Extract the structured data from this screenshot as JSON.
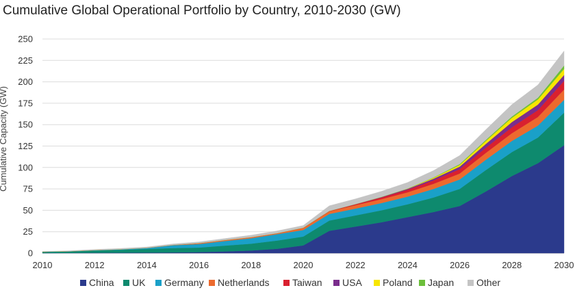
{
  "chart_data": {
    "type": "area",
    "stacked": true,
    "title": "Cumulative Global Operational Portfolio by Country, 2010-2030 (GW)",
    "xlabel": "",
    "ylabel": "Cumulative Capacity (GW)",
    "ylim": [
      0,
      250
    ],
    "yticks": [
      "0",
      "25",
      "50",
      "75",
      "100",
      "125",
      "150",
      "175",
      "200",
      "225",
      "250"
    ],
    "xlim": [
      2010,
      2030
    ],
    "xticks": [
      "2010",
      "2012",
      "2014",
      "2016",
      "2018",
      "2020",
      "2022",
      "2024",
      "2026",
      "2028",
      "2030"
    ],
    "grid": "horizontal",
    "legend_position": "bottom",
    "x": [
      2010,
      2011,
      2012,
      2013,
      2014,
      2015,
      2016,
      2017,
      2018,
      2019,
      2020,
      2021,
      2022,
      2023,
      2024,
      2025,
      2026,
      2027,
      2028,
      2029,
      2030
    ],
    "series": [
      {
        "name": "China",
        "color": "#2b3a8c",
        "values": [
          0.1,
          0.2,
          0.4,
          0.5,
          0.6,
          0.8,
          1.2,
          2.0,
          3.0,
          5.0,
          9.0,
          26.0,
          31.0,
          36.0,
          42.0,
          48.0,
          55.0,
          72.0,
          90.0,
          105.0,
          126.0
        ]
      },
      {
        "name": "UK",
        "color": "#0e8a6e",
        "values": [
          1.3,
          1.6,
          2.6,
          3.3,
          4.3,
          5.1,
          5.3,
          6.8,
          8.0,
          9.7,
          10.3,
          12.0,
          13.0,
          14.0,
          15.0,
          17.0,
          20.0,
          25.0,
          28.0,
          30.0,
          38.0
        ]
      },
      {
        "name": "Germany",
        "color": "#1aa0c8",
        "values": [
          0.1,
          0.2,
          0.3,
          0.5,
          1.0,
          3.3,
          4.1,
          5.3,
          6.4,
          7.5,
          7.7,
          7.8,
          8.0,
          8.5,
          9.0,
          10.0,
          11.0,
          12.0,
          13.0,
          14.0,
          15.0
        ]
      },
      {
        "name": "Netherlands",
        "color": "#ec6a2e",
        "values": [
          0.2,
          0.2,
          0.2,
          0.2,
          0.3,
          0.4,
          1.0,
          1.2,
          1.3,
          1.0,
          2.5,
          3.0,
          4.0,
          4.5,
          5.0,
          6.0,
          7.0,
          8.0,
          9.0,
          10.0,
          12.0
        ]
      },
      {
        "name": "Taiwan",
        "color": "#d9202f",
        "values": [
          0,
          0,
          0,
          0,
          0,
          0,
          0,
          0,
          0,
          0.1,
          0.1,
          0.3,
          1.0,
          2.0,
          3.0,
          4.0,
          5.0,
          6.0,
          7.0,
          8.0,
          10.0
        ]
      },
      {
        "name": "USA",
        "color": "#7a2d8c",
        "values": [
          0,
          0,
          0,
          0,
          0,
          0,
          0.03,
          0.03,
          0.03,
          0.03,
          0.03,
          0.1,
          0.2,
          0.5,
          1.0,
          2.0,
          3.0,
          4.5,
          6.0,
          6.5,
          7.0
        ]
      },
      {
        "name": "Poland",
        "color": "#f7e600",
        "values": [
          0,
          0,
          0,
          0,
          0,
          0,
          0,
          0,
          0,
          0,
          0,
          0,
          0,
          0,
          0.2,
          1.0,
          2.0,
          3.5,
          5.0,
          6.0,
          7.0
        ]
      },
      {
        "name": "Japan",
        "color": "#6cbf3b",
        "values": [
          0,
          0,
          0,
          0,
          0,
          0,
          0,
          0,
          0,
          0,
          0.1,
          0.1,
          0.1,
          0.2,
          0.3,
          0.5,
          1.0,
          1.2,
          1.5,
          2.0,
          4.0
        ]
      },
      {
        "name": "Other",
        "color": "#c4c4c4",
        "values": [
          0.3,
          0.5,
          0.8,
          1.0,
          1.0,
          1.2,
          1.5,
          1.8,
          2.2,
          2.6,
          2.5,
          6.0,
          6.0,
          6.5,
          7.0,
          8.0,
          10.0,
          12.0,
          14.0,
          15.0,
          17.0
        ]
      }
    ]
  }
}
